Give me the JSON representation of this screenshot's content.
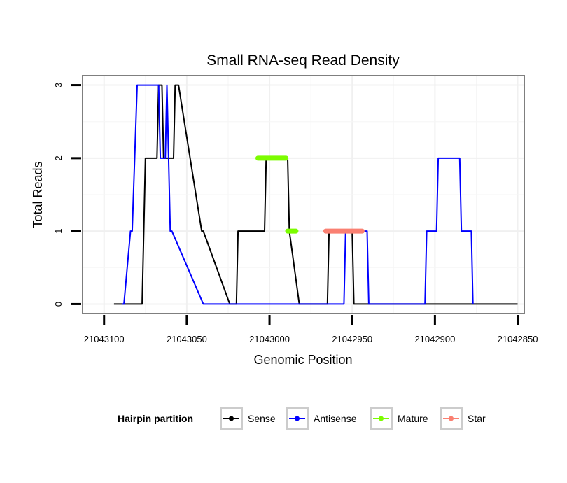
{
  "chart_data": {
    "type": "line",
    "title": "Small RNA-seq Read Density",
    "xlabel": "Genomic Position",
    "ylabel": "Total Reads",
    "x_reversed": true,
    "xlim": [
      21043113,
      21042846
    ],
    "ylim": [
      -0.13,
      3.13
    ],
    "x_ticks": [
      21043100,
      21043050,
      21043000,
      21042950,
      21042900,
      21042850
    ],
    "x_tick_labels": [
      "21043100",
      "21043050",
      "21043000",
      "21042950",
      "21042900",
      "21042850"
    ],
    "y_ticks": [
      0,
      1,
      2,
      3
    ],
    "y_tick_labels": [
      "0",
      "1",
      "2",
      "3"
    ],
    "grid": true,
    "legend": {
      "title": "Hairpin partition",
      "position": "bottom",
      "entries": [
        {
          "name": "Sense",
          "color": "#000000"
        },
        {
          "name": "Antisense",
          "color": "#0000ff"
        },
        {
          "name": "Mature",
          "color": "#7cfc00"
        },
        {
          "name": "Star",
          "color": "#fa8072"
        }
      ]
    },
    "series": [
      {
        "name": "Sense",
        "color": "#000000",
        "x": [
          21043094,
          21043077,
          21043075,
          21043068,
          21043067,
          21043065,
          21043064,
          21043058,
          21043057,
          21043056,
          21043055,
          21043041,
          21043040,
          21043024,
          21043023,
          21043020,
          21043019,
          21043003,
          21043002,
          21042989,
          21042988,
          21042982,
          21042981,
          21042965,
          21042964,
          21042950,
          21042949,
          21042850
        ],
        "y": [
          0,
          0,
          2,
          2,
          3,
          3,
          2,
          2,
          3,
          3,
          3,
          1,
          1,
          0,
          0,
          0,
          1,
          1,
          2,
          2,
          1,
          0,
          0,
          0,
          1,
          1,
          0,
          0
        ]
      },
      {
        "name": "Antisense",
        "color": "#0000ff",
        "x": [
          21043089,
          21043088,
          21043084,
          21043083,
          21043080,
          21043079,
          21043067,
          21043066,
          21043063,
          21043062,
          21043060,
          21043059,
          21043040,
          21043039,
          21042955,
          21042954,
          21042941,
          21042940,
          21042906,
          21042905,
          21042899,
          21042898,
          21042885,
          21042884,
          21042878,
          21042877
        ],
        "y": [
          0,
          0,
          1,
          1,
          3,
          3,
          3,
          2,
          2,
          3,
          1,
          1,
          0,
          0,
          0,
          1,
          1,
          0,
          0,
          1,
          1,
          2,
          2,
          1,
          1,
          0
        ]
      },
      {
        "name": "Mature",
        "color": "#7cfc00",
        "x": [
          21043007,
          21042990,
          null,
          21042989,
          21042984
        ],
        "y": [
          2,
          2,
          null,
          1,
          1
        ]
      },
      {
        "name": "Star",
        "color": "#fa8072",
        "x": [
          21042966,
          21042944
        ],
        "y": [
          1,
          1
        ]
      }
    ]
  }
}
